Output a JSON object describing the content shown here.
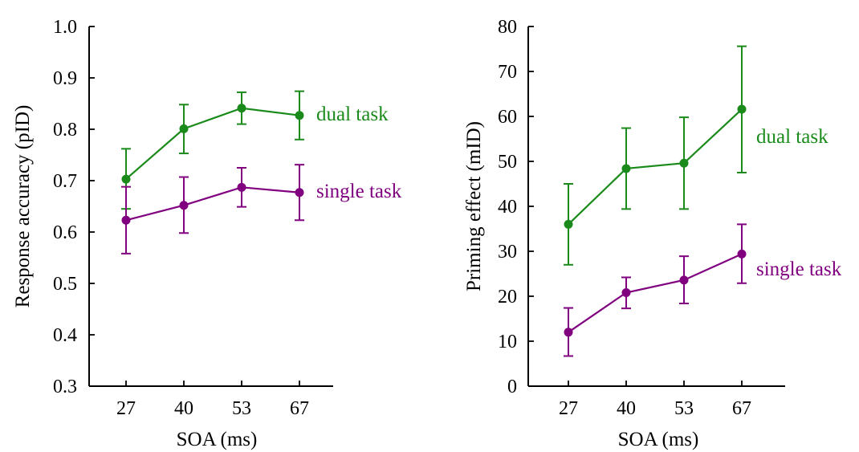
{
  "chart_data": [
    {
      "type": "line",
      "xlabel": "SOA (ms)",
      "ylabel": "Response accuracy (pID)",
      "categories": [
        "27",
        "40",
        "53",
        "67"
      ],
      "ylim": [
        0.3,
        1.0
      ],
      "yticks": [
        "0.3",
        "0.4",
        "0.5",
        "0.6",
        "0.7",
        "0.8",
        "0.9",
        "1.0"
      ],
      "grid": false,
      "series": [
        {
          "name": "dual task",
          "color": "#1a8a1a",
          "values": [
            0.703,
            0.801,
            0.841,
            0.827
          ],
          "err_low": [
            0.645,
            0.753,
            0.81,
            0.78
          ],
          "err_high": [
            0.762,
            0.848,
            0.872,
            0.874
          ]
        },
        {
          "name": "single task",
          "color": "#800080",
          "values": [
            0.623,
            0.652,
            0.687,
            0.677
          ],
          "err_low": [
            0.558,
            0.598,
            0.649,
            0.623
          ],
          "err_high": [
            0.688,
            0.707,
            0.725,
            0.731
          ]
        }
      ]
    },
    {
      "type": "line",
      "xlabel": "SOA (ms)",
      "ylabel": "Priming effect (mID)",
      "categories": [
        "27",
        "40",
        "53",
        "67"
      ],
      "ylim": [
        0,
        80
      ],
      "yticks": [
        "0",
        "10",
        "20",
        "30",
        "40",
        "50",
        "60",
        "70",
        "80"
      ],
      "grid": false,
      "series": [
        {
          "name": "dual task",
          "color": "#1a8a1a",
          "values": [
            36.0,
            48.4,
            49.6,
            61.6
          ],
          "err_low": [
            27.0,
            39.4,
            39.4,
            47.5
          ],
          "err_high": [
            45.0,
            57.4,
            59.8,
            75.6
          ]
        },
        {
          "name": "single task",
          "color": "#800080",
          "values": [
            12.0,
            20.8,
            23.6,
            29.4
          ],
          "err_low": [
            6.7,
            17.3,
            18.4,
            22.9
          ],
          "err_high": [
            17.4,
            24.2,
            28.9,
            36.0
          ]
        }
      ]
    }
  ]
}
